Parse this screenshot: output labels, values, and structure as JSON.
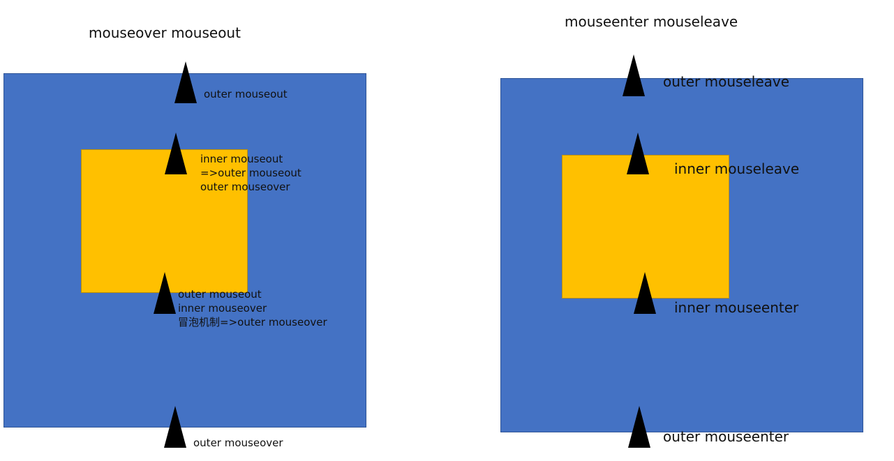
{
  "titles": {
    "left": "mouseover mouseout",
    "right": "mouseenter mouseleave"
  },
  "colors": {
    "outer": "#4472c4",
    "inner": "#ffc000",
    "arrow": "#000000"
  },
  "left_diagram": {
    "top_label": "outer mouseout",
    "inner_top_lines": [
      "inner mouseout",
      "=>outer mouseout",
      "outer mouseover"
    ],
    "inner_bottom_lines": [
      "outer mouseout",
      "inner mouseover",
      "冒泡机制=>outer mouseover"
    ],
    "bottom_label": "outer mouseover"
  },
  "right_diagram": {
    "top_label": "outer mouseleave",
    "inner_top_label": "inner mouseleave",
    "inner_bottom_label": "inner mouseenter",
    "bottom_label": "outer mouseenter"
  }
}
